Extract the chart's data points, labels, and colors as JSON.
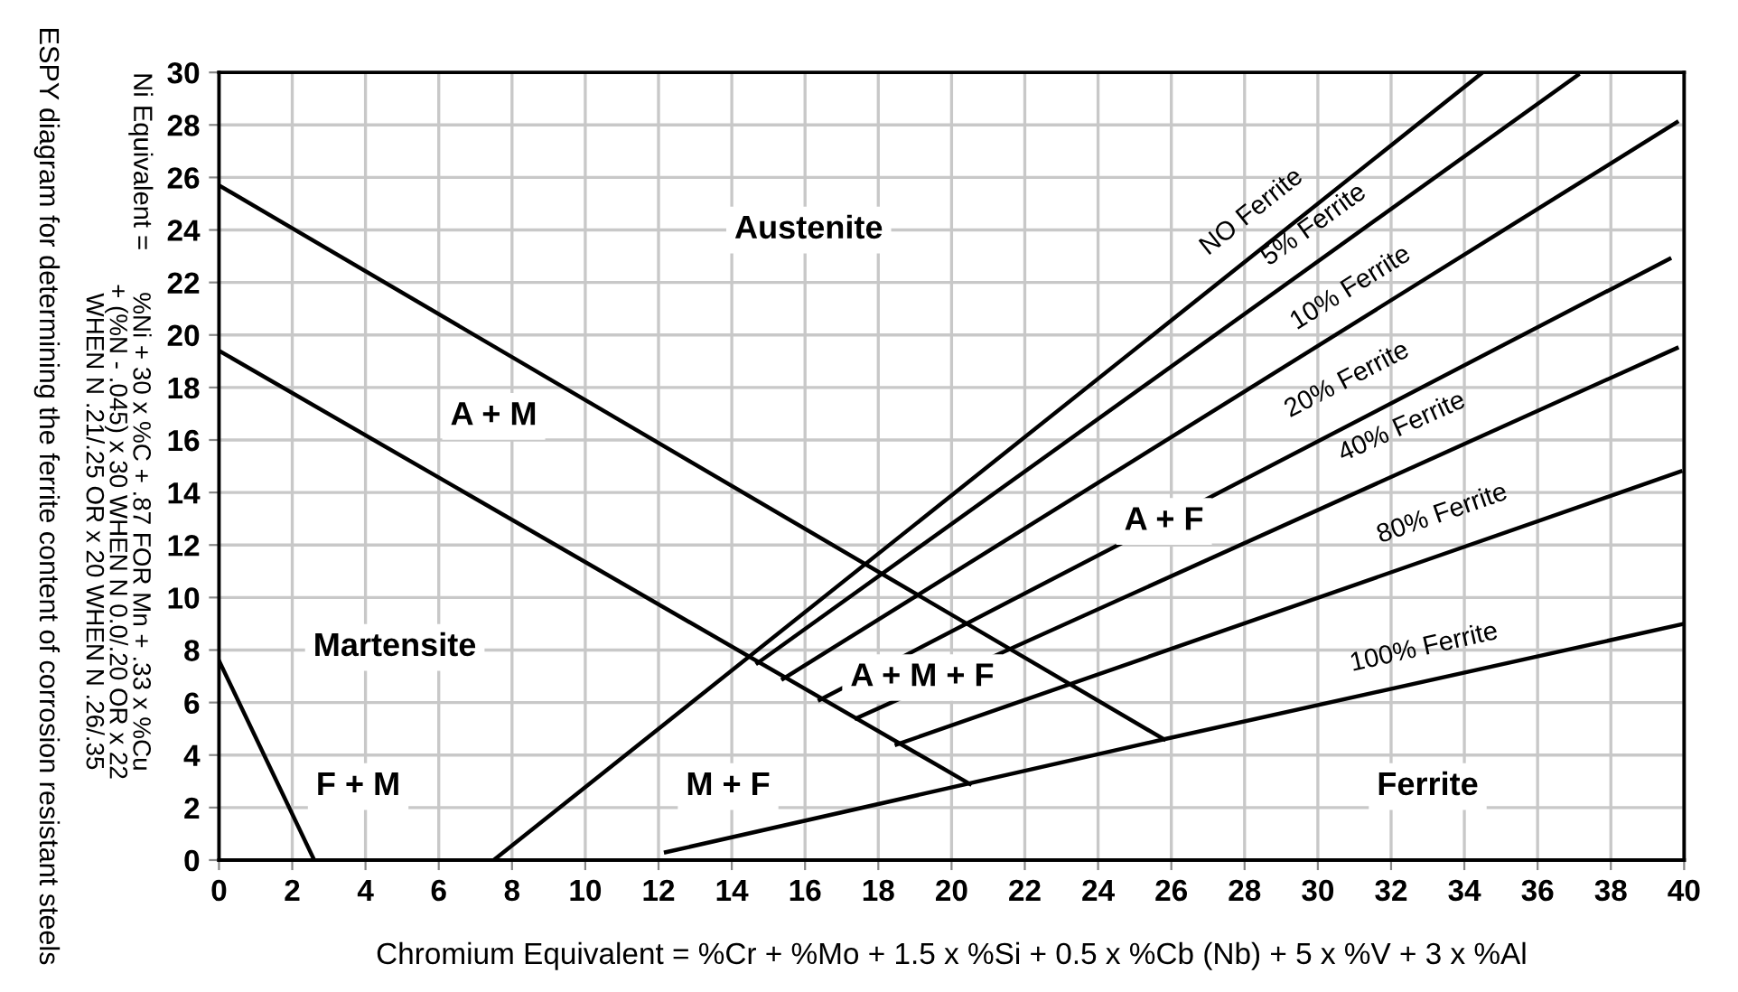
{
  "chart_data": {
    "type": "line",
    "title": "ESPY diagram for determining the ferrite content of corrosion resistant steels",
    "xlabel": "Chromium Equivalent = %Cr + %Mo + 1.5 x %Si + 0.5 x %Cb (Nb) + 5 x %V + 3 x %Al",
    "ylabel": "Ni Equivalent =",
    "xlim": [
      0,
      40
    ],
    "ylim": [
      0,
      30
    ],
    "xticks": [
      0,
      2,
      4,
      6,
      8,
      10,
      12,
      14,
      16,
      18,
      20,
      22,
      24,
      26,
      28,
      30,
      32,
      34,
      36,
      38,
      40
    ],
    "yticks": [
      0,
      2,
      4,
      6,
      8,
      10,
      12,
      14,
      16,
      18,
      20,
      22,
      24,
      26,
      28,
      30
    ],
    "grid": true,
    "marker": "none",
    "line_style": "solid",
    "series": [
      {
        "color": "#000000",
        "x": [
          0,
          25.8
        ],
        "values": [
          25.7,
          4.6
        ]
      },
      {
        "color": "#000000",
        "x": [
          0,
          20.5
        ],
        "values": [
          19.4,
          2.9
        ]
      },
      {
        "color": "#000000",
        "x": [
          0,
          2.6
        ],
        "values": [
          7.6,
          0
        ]
      },
      {
        "color": "#000000",
        "x": [
          7.5,
          34.5
        ],
        "values": [
          0,
          30
        ]
      },
      {
        "color": "#000000",
        "x": [
          14.7,
          37.1
        ],
        "values": [
          7.5,
          29.9
        ]
      },
      {
        "color": "#000000",
        "x": [
          15.4,
          39.8
        ],
        "values": [
          6.9,
          28.1
        ]
      },
      {
        "color": "#000000",
        "x": [
          16.4,
          39.6
        ],
        "values": [
          6.1,
          22.9
        ]
      },
      {
        "color": "#000000",
        "x": [
          17.4,
          39.8
        ],
        "values": [
          5.4,
          19.5
        ]
      },
      {
        "color": "#000000",
        "x": [
          18.5,
          39.9
        ],
        "values": [
          4.4,
          14.8
        ]
      },
      {
        "color": "#000000",
        "x": [
          12.2,
          25.8,
          40
        ],
        "values": [
          0.3,
          4.6,
          9.0
        ]
      }
    ],
    "annotations": [
      "%Ni + 30 x %C + .87 FOR Mn + .33 x %Cu\n+ (%N - .045) x 30 WHEN N 0.0/.20 OR x 22\nWHEN N .21/.25 OR x 20 WHEN N .26/.35",
      "NO Ferrite",
      "5% Ferrite",
      "10% Ferrite",
      "20% Ferrite",
      "40% Ferrite",
      "80% Ferrite",
      "100% Ferrite",
      "Austenite",
      "A + M",
      "Martensite",
      "F + M",
      "M + F",
      "A + M + F",
      "A + F",
      "Ferrite"
    ]
  }
}
